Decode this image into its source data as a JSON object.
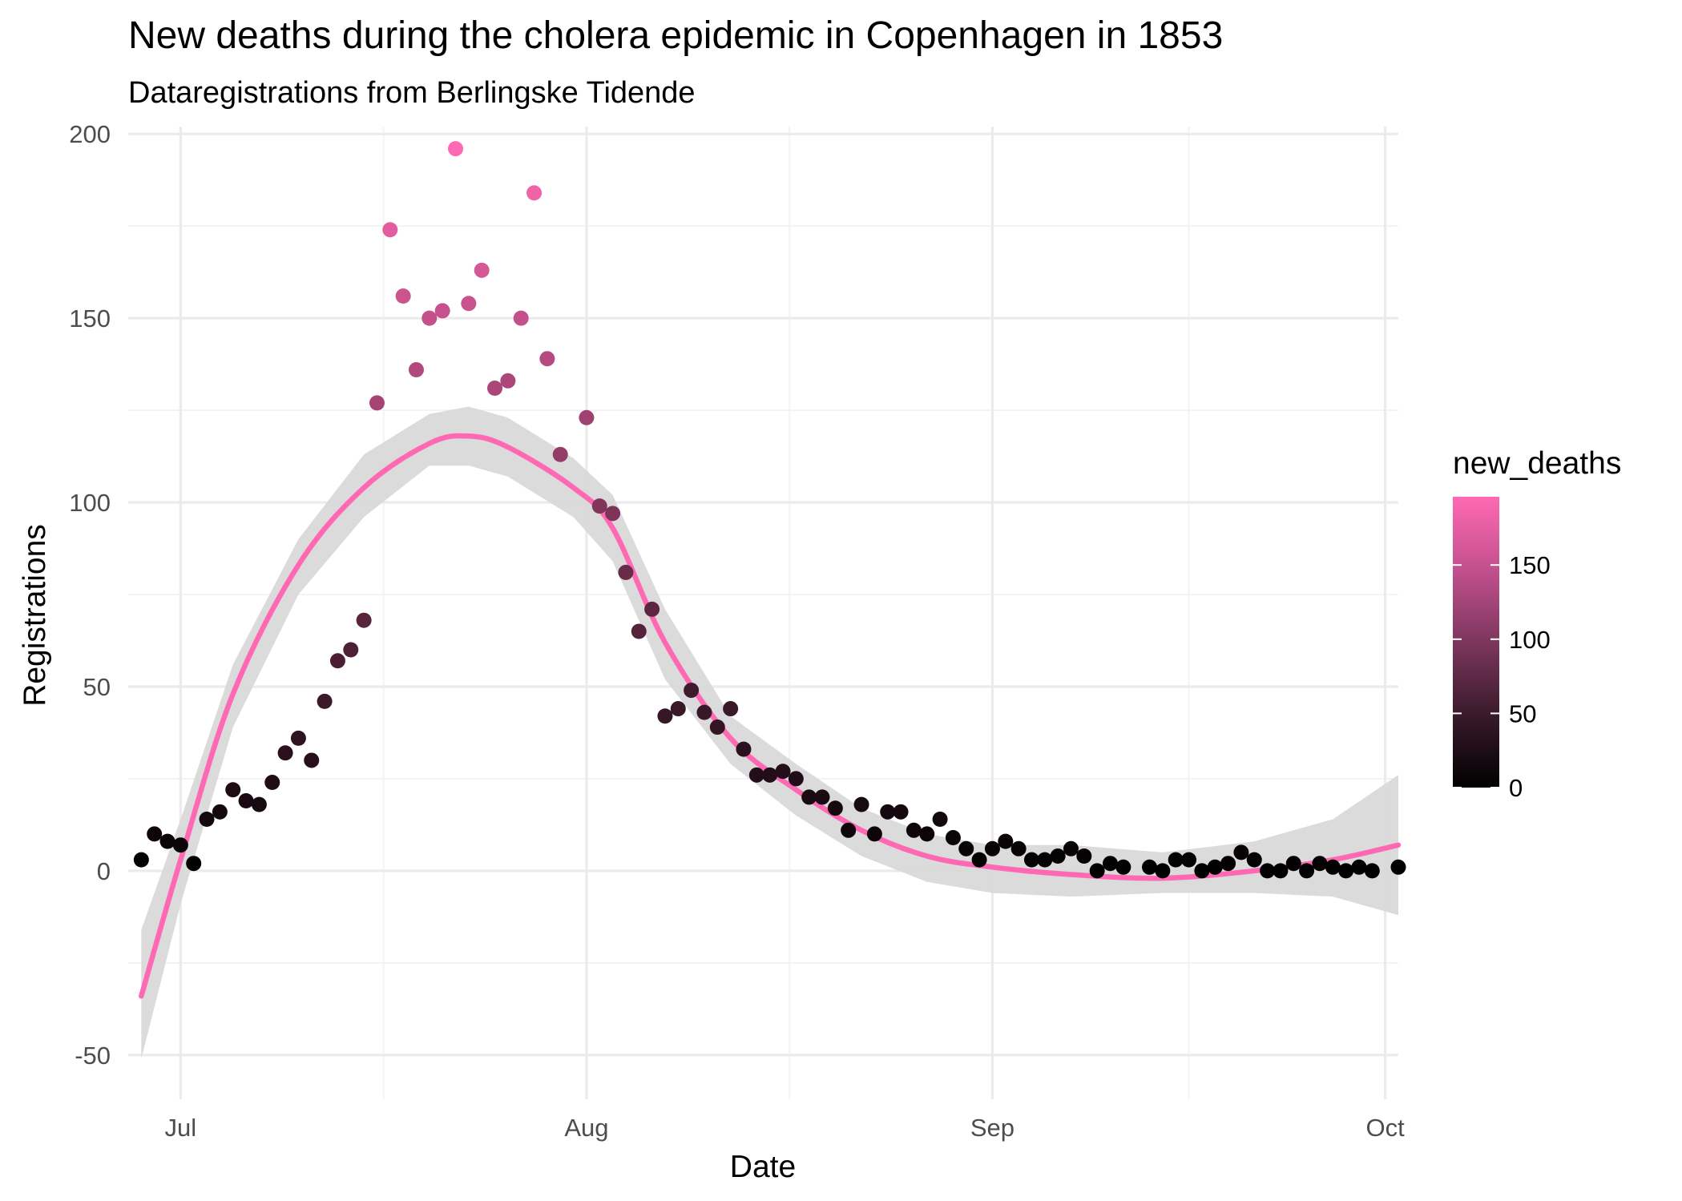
{
  "chart_data": {
    "type": "scatter",
    "title": "New deaths during the cholera epidemic in Copenhagen in 1853",
    "subtitle": "Dataregistrations from Berlingske Tidende",
    "xlabel": "Date",
    "ylabel": "Registrations",
    "x_range": [
      "1853-06-27",
      "1853-10-02"
    ],
    "ylim": [
      -62,
      202
    ],
    "y_ticks": [
      -50,
      0,
      50,
      100,
      150,
      200
    ],
    "x_ticks": [
      {
        "date": "1853-07-01",
        "label": "Jul"
      },
      {
        "date": "1853-08-01",
        "label": "Aug"
      },
      {
        "date": "1853-09-01",
        "label": "Sep"
      },
      {
        "date": "1853-10-01",
        "label": "Oct"
      }
    ],
    "grid": true,
    "legend": {
      "title": "new_deaths",
      "position": "right",
      "type": "colorbar",
      "range": [
        0,
        196
      ],
      "ticks": [
        0,
        50,
        100,
        150
      ],
      "color_low": "#000000",
      "color_high": "#FF69B4"
    },
    "colors": {
      "smooth_line": "#FF69B4",
      "ribbon": "#d9d9d9"
    },
    "points": [
      {
        "x": "1853-06-28",
        "y": 3
      },
      {
        "x": "1853-06-29",
        "y": 10
      },
      {
        "x": "1853-06-30",
        "y": 8
      },
      {
        "x": "1853-07-01",
        "y": 7
      },
      {
        "x": "1853-07-02",
        "y": 2
      },
      {
        "x": "1853-07-03",
        "y": 14
      },
      {
        "x": "1853-07-04",
        "y": 16
      },
      {
        "x": "1853-07-05",
        "y": 22
      },
      {
        "x": "1853-07-06",
        "y": 19
      },
      {
        "x": "1853-07-07",
        "y": 18
      },
      {
        "x": "1853-07-08",
        "y": 24
      },
      {
        "x": "1853-07-09",
        "y": 32
      },
      {
        "x": "1853-07-10",
        "y": 36
      },
      {
        "x": "1853-07-11",
        "y": 30
      },
      {
        "x": "1853-07-12",
        "y": 46
      },
      {
        "x": "1853-07-13",
        "y": 57
      },
      {
        "x": "1853-07-14",
        "y": 60
      },
      {
        "x": "1853-07-15",
        "y": 68
      },
      {
        "x": "1853-07-16",
        "y": 127
      },
      {
        "x": "1853-07-17",
        "y": 174
      },
      {
        "x": "1853-07-18",
        "y": 156
      },
      {
        "x": "1853-07-19",
        "y": 136
      },
      {
        "x": "1853-07-20",
        "y": 150
      },
      {
        "x": "1853-07-21",
        "y": 152
      },
      {
        "x": "1853-07-22",
        "y": 196
      },
      {
        "x": "1853-07-23",
        "y": 154
      },
      {
        "x": "1853-07-24",
        "y": 163
      },
      {
        "x": "1853-07-25",
        "y": 131
      },
      {
        "x": "1853-07-26",
        "y": 133
      },
      {
        "x": "1853-07-27",
        "y": 150
      },
      {
        "x": "1853-07-28",
        "y": 184
      },
      {
        "x": "1853-07-29",
        "y": 139
      },
      {
        "x": "1853-07-30",
        "y": 113
      },
      {
        "x": "1853-08-01",
        "y": 123
      },
      {
        "x": "1853-08-02",
        "y": 99
      },
      {
        "x": "1853-08-03",
        "y": 97
      },
      {
        "x": "1853-08-04",
        "y": 81
      },
      {
        "x": "1853-08-05",
        "y": 65
      },
      {
        "x": "1853-08-06",
        "y": 71
      },
      {
        "x": "1853-08-07",
        "y": 42
      },
      {
        "x": "1853-08-08",
        "y": 44
      },
      {
        "x": "1853-08-09",
        "y": 49
      },
      {
        "x": "1853-08-10",
        "y": 43
      },
      {
        "x": "1853-08-11",
        "y": 39
      },
      {
        "x": "1853-08-12",
        "y": 44
      },
      {
        "x": "1853-08-13",
        "y": 33
      },
      {
        "x": "1853-08-14",
        "y": 26
      },
      {
        "x": "1853-08-15",
        "y": 26
      },
      {
        "x": "1853-08-16",
        "y": 27
      },
      {
        "x": "1853-08-17",
        "y": 25
      },
      {
        "x": "1853-08-18",
        "y": 20
      },
      {
        "x": "1853-08-19",
        "y": 20
      },
      {
        "x": "1853-08-20",
        "y": 17
      },
      {
        "x": "1853-08-21",
        "y": 11
      },
      {
        "x": "1853-08-22",
        "y": 18
      },
      {
        "x": "1853-08-23",
        "y": 10
      },
      {
        "x": "1853-08-24",
        "y": 16
      },
      {
        "x": "1853-08-25",
        "y": 16
      },
      {
        "x": "1853-08-26",
        "y": 11
      },
      {
        "x": "1853-08-27",
        "y": 10
      },
      {
        "x": "1853-08-28",
        "y": 14
      },
      {
        "x": "1853-08-29",
        "y": 9
      },
      {
        "x": "1853-08-30",
        "y": 6
      },
      {
        "x": "1853-08-31",
        "y": 3
      },
      {
        "x": "1853-09-01",
        "y": 6
      },
      {
        "x": "1853-09-02",
        "y": 8
      },
      {
        "x": "1853-09-03",
        "y": 6
      },
      {
        "x": "1853-09-04",
        "y": 3
      },
      {
        "x": "1853-09-05",
        "y": 3
      },
      {
        "x": "1853-09-06",
        "y": 4
      },
      {
        "x": "1853-09-07",
        "y": 6
      },
      {
        "x": "1853-09-08",
        "y": 4
      },
      {
        "x": "1853-09-09",
        "y": 0
      },
      {
        "x": "1853-09-10",
        "y": 2
      },
      {
        "x": "1853-09-11",
        "y": 1
      },
      {
        "x": "1853-09-13",
        "y": 1
      },
      {
        "x": "1853-09-14",
        "y": 0
      },
      {
        "x": "1853-09-15",
        "y": 3
      },
      {
        "x": "1853-09-16",
        "y": 3
      },
      {
        "x": "1853-09-17",
        "y": 0
      },
      {
        "x": "1853-09-18",
        "y": 1
      },
      {
        "x": "1853-09-19",
        "y": 2
      },
      {
        "x": "1853-09-20",
        "y": 5
      },
      {
        "x": "1853-09-21",
        "y": 3
      },
      {
        "x": "1853-09-22",
        "y": 0
      },
      {
        "x": "1853-09-23",
        "y": 0
      },
      {
        "x": "1853-09-24",
        "y": 2
      },
      {
        "x": "1853-09-25",
        "y": 0
      },
      {
        "x": "1853-09-26",
        "y": 2
      },
      {
        "x": "1853-09-27",
        "y": 1
      },
      {
        "x": "1853-09-28",
        "y": 0
      },
      {
        "x": "1853-09-29",
        "y": 1
      },
      {
        "x": "1853-09-30",
        "y": 0
      },
      {
        "x": "1853-10-02",
        "y": 1
      }
    ],
    "smooth": {
      "x": [
        "1853-06-28",
        "1853-07-01",
        "1853-07-05",
        "1853-07-10",
        "1853-07-15",
        "1853-07-20",
        "1853-07-23",
        "1853-07-26",
        "1853-07-31",
        "1853-08-03",
        "1853-08-07",
        "1853-08-12",
        "1853-08-17",
        "1853-08-22",
        "1853-08-27",
        "1853-09-01",
        "1853-09-07",
        "1853-09-14",
        "1853-09-21",
        "1853-09-27",
        "1853-10-02"
      ],
      "y": [
        -34,
        3,
        48,
        83,
        104,
        116,
        118,
        115,
        104,
        93,
        62,
        36,
        22,
        11,
        4,
        1,
        -1,
        -2,
        0,
        3,
        7
      ],
      "lower": [
        -51,
        -9,
        39,
        75,
        96,
        110,
        110,
        107,
        96,
        84,
        52,
        29,
        15,
        4,
        -3,
        -6,
        -7,
        -6,
        -6,
        -7,
        -12
      ],
      "upper": [
        -16,
        14,
        56,
        90,
        113,
        124,
        126,
        123,
        112,
        102,
        71,
        42,
        29,
        17,
        10,
        7,
        7,
        5,
        8,
        14,
        26
      ]
    }
  }
}
